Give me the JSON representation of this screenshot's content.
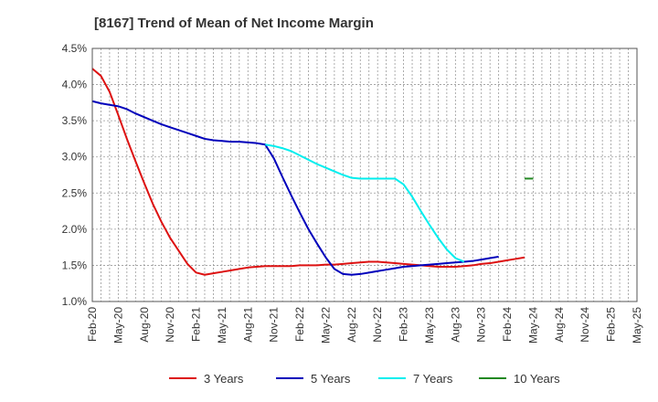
{
  "chart_data": {
    "type": "line",
    "title": "[8167]  Trend of Mean of Net Income Margin",
    "xlabel": "",
    "ylabel": "",
    "x_tick_labels": [
      "Feb-20",
      "May-20",
      "Aug-20",
      "Nov-20",
      "Feb-21",
      "May-21",
      "Aug-21",
      "Nov-21",
      "Feb-22",
      "May-22",
      "Aug-22",
      "Nov-22",
      "Feb-23",
      "May-23",
      "Aug-23",
      "Nov-23",
      "Feb-24",
      "May-24",
      "Aug-24",
      "Nov-24",
      "Feb-25",
      "May-25"
    ],
    "y_tick_labels": [
      "1.0%",
      "1.5%",
      "2.0%",
      "2.5%",
      "3.0%",
      "3.5%",
      "4.0%",
      "4.5%"
    ],
    "ylim": [
      1.0,
      4.5
    ],
    "grid": true,
    "legend_position": "bottom",
    "series": [
      {
        "name": "3 Years",
        "color": "#dd1111",
        "points": [
          [
            0,
            4.22
          ],
          [
            1,
            4.12
          ],
          [
            2,
            3.9
          ],
          [
            3,
            3.58
          ],
          [
            4,
            3.25
          ],
          [
            5,
            2.94
          ],
          [
            6,
            2.64
          ],
          [
            7,
            2.35
          ],
          [
            8,
            2.1
          ],
          [
            9,
            1.88
          ],
          [
            10,
            1.7
          ],
          [
            11,
            1.52
          ],
          [
            12,
            1.4
          ],
          [
            13,
            1.37
          ],
          [
            14,
            1.39
          ],
          [
            15,
            1.41
          ],
          [
            16,
            1.43
          ],
          [
            17,
            1.45
          ],
          [
            18,
            1.47
          ],
          [
            19,
            1.48
          ],
          [
            20,
            1.49
          ],
          [
            21,
            1.49
          ],
          [
            22,
            1.49
          ],
          [
            23,
            1.49
          ],
          [
            24,
            1.5
          ],
          [
            25,
            1.5
          ],
          [
            26,
            1.5
          ],
          [
            27,
            1.51
          ],
          [
            28,
            1.51
          ],
          [
            29,
            1.52
          ],
          [
            30,
            1.53
          ],
          [
            31,
            1.54
          ],
          [
            32,
            1.55
          ],
          [
            33,
            1.55
          ],
          [
            34,
            1.54
          ],
          [
            35,
            1.53
          ],
          [
            36,
            1.52
          ],
          [
            37,
            1.51
          ],
          [
            38,
            1.5
          ],
          [
            39,
            1.49
          ],
          [
            40,
            1.48
          ],
          [
            41,
            1.48
          ],
          [
            42,
            1.48
          ],
          [
            43,
            1.49
          ],
          [
            44,
            1.5
          ],
          [
            45,
            1.52
          ],
          [
            46,
            1.53
          ],
          [
            47,
            1.55
          ],
          [
            48,
            1.57
          ],
          [
            49,
            1.59
          ],
          [
            50,
            1.61
          ]
        ]
      },
      {
        "name": "5 Years",
        "color": "#0000bb",
        "points": [
          [
            0,
            3.77
          ],
          [
            1,
            3.74
          ],
          [
            2,
            3.72
          ],
          [
            3,
            3.7
          ],
          [
            4,
            3.66
          ],
          [
            5,
            3.6
          ],
          [
            6,
            3.55
          ],
          [
            7,
            3.5
          ],
          [
            8,
            3.45
          ],
          [
            9,
            3.41
          ],
          [
            10,
            3.37
          ],
          [
            11,
            3.33
          ],
          [
            12,
            3.29
          ],
          [
            13,
            3.25
          ],
          [
            14,
            3.23
          ],
          [
            15,
            3.22
          ],
          [
            16,
            3.21
          ],
          [
            17,
            3.21
          ],
          [
            18,
            3.2
          ],
          [
            19,
            3.19
          ],
          [
            20,
            3.17
          ],
          [
            21,
            2.98
          ],
          [
            22,
            2.72
          ],
          [
            23,
            2.47
          ],
          [
            24,
            2.23
          ],
          [
            25,
            2.0
          ],
          [
            26,
            1.8
          ],
          [
            27,
            1.61
          ],
          [
            28,
            1.45
          ],
          [
            29,
            1.38
          ],
          [
            30,
            1.37
          ],
          [
            31,
            1.38
          ],
          [
            32,
            1.4
          ],
          [
            33,
            1.42
          ],
          [
            34,
            1.44
          ],
          [
            35,
            1.46
          ],
          [
            36,
            1.48
          ],
          [
            37,
            1.49
          ],
          [
            38,
            1.5
          ],
          [
            39,
            1.51
          ],
          [
            40,
            1.52
          ],
          [
            41,
            1.53
          ],
          [
            42,
            1.54
          ],
          [
            43,
            1.55
          ],
          [
            44,
            1.56
          ],
          [
            45,
            1.58
          ],
          [
            46,
            1.6
          ],
          [
            47,
            1.62
          ]
        ]
      },
      {
        "name": "7 Years",
        "color": "#00eeee",
        "points": [
          [
            20,
            3.17
          ],
          [
            21,
            3.15
          ],
          [
            22,
            3.12
          ],
          [
            23,
            3.08
          ],
          [
            24,
            3.02
          ],
          [
            25,
            2.96
          ],
          [
            26,
            2.9
          ],
          [
            27,
            2.85
          ],
          [
            28,
            2.8
          ],
          [
            29,
            2.75
          ],
          [
            30,
            2.71
          ],
          [
            31,
            2.7
          ],
          [
            32,
            2.7
          ],
          [
            33,
            2.7
          ],
          [
            34,
            2.7
          ],
          [
            35,
            2.7
          ],
          [
            36,
            2.62
          ],
          [
            37,
            2.45
          ],
          [
            38,
            2.25
          ],
          [
            39,
            2.06
          ],
          [
            40,
            1.88
          ],
          [
            41,
            1.72
          ],
          [
            42,
            1.6
          ],
          [
            43,
            1.55
          ]
        ]
      },
      {
        "name": "10 Years",
        "color": "#228822",
        "points": [
          [
            50,
            2.7
          ],
          [
            51,
            2.7
          ]
        ]
      }
    ]
  }
}
